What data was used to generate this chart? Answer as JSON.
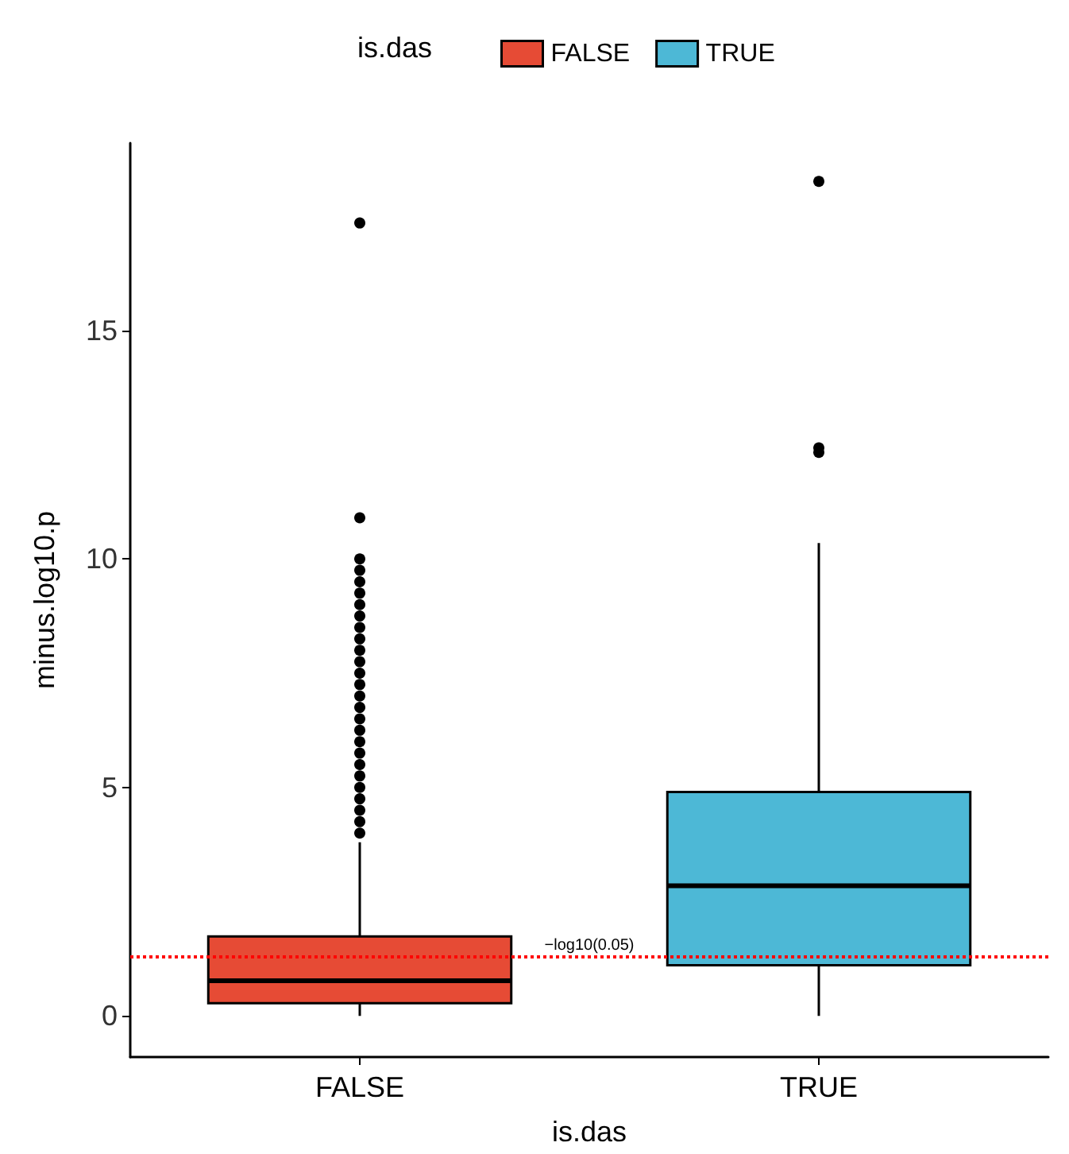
{
  "chart_data": {
    "type": "box",
    "xlabel": "is.das",
    "ylabel": "minus.log10.p",
    "legend_title": "is.das",
    "legend": "top",
    "categories": [
      "FALSE",
      "TRUE"
    ],
    "series": [
      {
        "name": "FALSE",
        "color": "#e64b35",
        "boxes": [
          {
            "low": 0,
            "q1": 0.28,
            "median": 0.77,
            "q3": 1.74,
            "high": 3.8,
            "outliers": [
              4.0,
              4.25,
              4.5,
              4.75,
              5.0,
              5.25,
              5.5,
              5.75,
              6.0,
              6.25,
              6.5,
              6.75,
              7.0,
              7.25,
              7.5,
              7.75,
              8.0,
              8.25,
              8.5,
              8.75,
              9.0,
              9.25,
              9.5,
              9.75,
              10.0,
              10.9,
              17.35
            ]
          },
          null
        ]
      },
      {
        "name": "TRUE",
        "color": "#4db8d6",
        "boxes": [
          null,
          {
            "low": 0,
            "q1": 1.11,
            "median": 2.85,
            "q3": 4.9,
            "high": 10.35,
            "outliers": [
              12.33,
              12.43,
              18.26
            ]
          }
        ]
      }
    ],
    "ylim": [
      -0.9,
      19.1
    ],
    "yticks": [
      0,
      5,
      10,
      15
    ],
    "grid": false,
    "ref_lines": [
      {
        "axis": "y",
        "value": 1.3,
        "label": "−log10(0.05)",
        "color": "#ff0000",
        "line_style": "dotted"
      }
    ]
  }
}
